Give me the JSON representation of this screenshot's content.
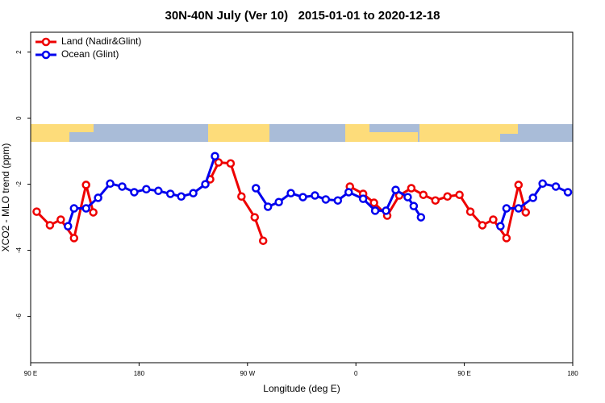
{
  "chart_data": {
    "type": "line",
    "title": "30N-40N July (Ver 10)   2015-01-01 to 2020-12-18",
    "xlabel": "Longitude (deg E)",
    "ylabel": "XCO2 - MLO trend (ppm)",
    "xlim": [
      90,
      540
    ],
    "xticks": [
      {
        "value": 90,
        "label": "90 E"
      },
      {
        "value": 180,
        "label": "180"
      },
      {
        "value": 270,
        "label": "90 W"
      },
      {
        "value": 360,
        "label": "0"
      },
      {
        "value": 450,
        "label": "90 E"
      },
      {
        "value": 540,
        "label": "180"
      }
    ],
    "ylim": [
      -7.4,
      2.6
    ],
    "yticks": [
      2,
      0,
      -2,
      -4,
      -6
    ],
    "legend": "top-left",
    "series": [
      {
        "name": "Land (Nadir&Glint)",
        "color": "#ee0000",
        "x": [
          95,
          106,
          115,
          126,
          136,
          142,
          null,
          239,
          246,
          256,
          265,
          276,
          283,
          null,
          355,
          366,
          375,
          386,
          396,
          406,
          416,
          426,
          436,
          446,
          455,
          465,
          474,
          485,
          495,
          501
        ],
        "values": [
          -2.83,
          -3.24,
          -3.07,
          -3.63,
          -2.02,
          -2.85,
          null,
          -1.85,
          -1.34,
          -1.37,
          -2.37,
          -3.0,
          -3.71,
          null,
          -2.07,
          -2.29,
          -2.56,
          -2.95,
          -2.34,
          -2.12,
          -2.32,
          -2.49,
          -2.37,
          -2.32,
          -2.83,
          -3.24,
          -3.07,
          -3.63,
          -2.02,
          -2.85
        ]
      },
      {
        "name": "Ocean (Glint)",
        "color": "#0000ee",
        "x": [
          121,
          126,
          136,
          146,
          156,
          166,
          176,
          186,
          196,
          206,
          215,
          225,
          235,
          243,
          null,
          277,
          287,
          296,
          306,
          316,
          326,
          335,
          345,
          354,
          366,
          376,
          385,
          393,
          403,
          408,
          414,
          null,
          480,
          485,
          495,
          507,
          515,
          526,
          536
        ],
        "values": [
          -3.27,
          -2.73,
          -2.73,
          -2.41,
          -1.98,
          -2.07,
          -2.24,
          -2.15,
          -2.2,
          -2.29,
          -2.37,
          -2.27,
          -2.0,
          -1.15,
          null,
          -2.12,
          -2.68,
          -2.54,
          -2.27,
          -2.39,
          -2.34,
          -2.46,
          -2.49,
          -2.24,
          -2.44,
          -2.8,
          -2.8,
          -2.17,
          -2.39,
          -2.66,
          -3.0,
          null,
          -3.27,
          -2.73,
          -2.73,
          -2.41,
          -1.98,
          -2.07,
          -2.24
        ]
      }
    ]
  }
}
